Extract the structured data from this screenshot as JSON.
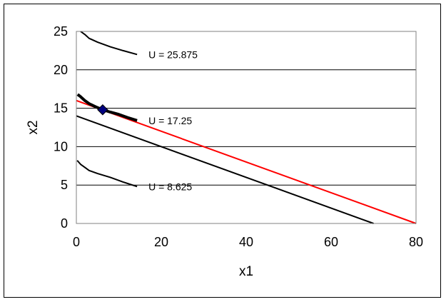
{
  "chart_data": {
    "type": "line",
    "title": "",
    "xlabel": "x1",
    "ylabel": "x2",
    "xlim": [
      0,
      80
    ],
    "ylim": [
      0,
      25
    ],
    "x_ticks": [
      0,
      20,
      40,
      60,
      80
    ],
    "y_ticks": [
      0,
      5,
      10,
      15,
      20,
      25
    ],
    "grid": "horizontal",
    "colors": {
      "budget_new": "#ff0000",
      "budget_old": "#000000",
      "curves": "#000000",
      "point": "#000080"
    },
    "budget_lines": [
      {
        "color": "#ff0000",
        "x": [
          0,
          80
        ],
        "y": [
          16,
          0
        ]
      },
      {
        "color": "#000000",
        "x": [
          0,
          70
        ],
        "y": [
          14,
          0
        ]
      }
    ],
    "indifference_curves": [
      {
        "label": "U = 25.875",
        "x": [
          1,
          2,
          3,
          5,
          8,
          11,
          14.3
        ],
        "y": [
          25,
          24.6,
          24.1,
          23.6,
          23.0,
          22.5,
          22.0
        ],
        "bold": false
      },
      {
        "label": "U = 17.25",
        "x": [
          0.3,
          1,
          2,
          3,
          4.5,
          6.2,
          8,
          10,
          12,
          14.3
        ],
        "y": [
          16.8,
          16.5,
          16.0,
          15.6,
          15.2,
          14.8,
          14.5,
          14.2,
          13.8,
          13.4
        ],
        "bold": true
      },
      {
        "label": "U = 8.625",
        "x": [
          0.2,
          1,
          2,
          3,
          5,
          8,
          11,
          14.3
        ],
        "y": [
          8.2,
          7.7,
          7.3,
          6.9,
          6.5,
          6.0,
          5.4,
          4.8
        ],
        "bold": false
      }
    ],
    "optimum_point": {
      "x": 6.2,
      "y": 14.8
    }
  }
}
